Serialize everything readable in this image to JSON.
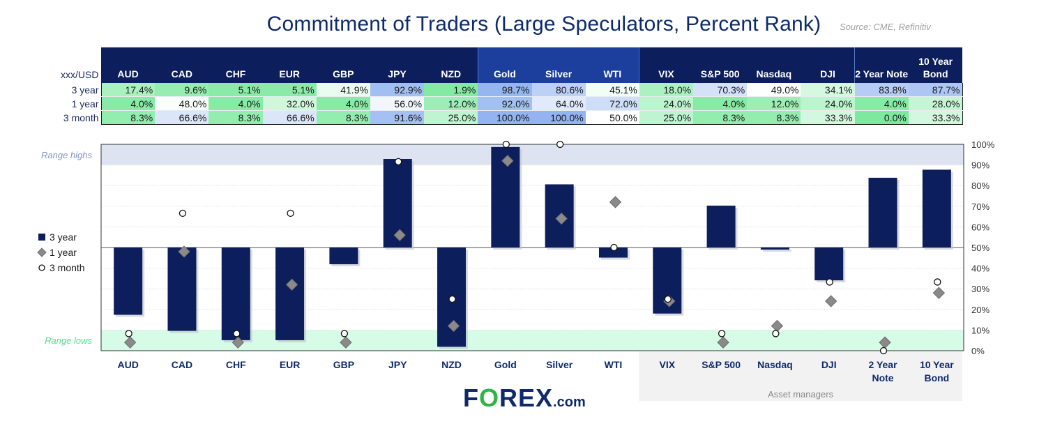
{
  "title": "Commitment of Traders (Large Speculators, Percent Rank)",
  "source": "Source: CME, Refinitiv",
  "table": {
    "corner_label": "xxx/USD",
    "columns": [
      {
        "label": "AUD",
        "group": "fx"
      },
      {
        "label": "CAD",
        "group": "fx"
      },
      {
        "label": "CHF",
        "group": "fx"
      },
      {
        "label": "EUR",
        "group": "fx"
      },
      {
        "label": "GBP",
        "group": "fx"
      },
      {
        "label": "JPY",
        "group": "fx"
      },
      {
        "label": "NZD",
        "group": "fx"
      },
      {
        "label": "Gold",
        "group": "commodities"
      },
      {
        "label": "Silver",
        "group": "commodities"
      },
      {
        "label": "WTI",
        "group": "commodities"
      },
      {
        "label": "VIX",
        "group": "indices"
      },
      {
        "label": "S&P 500",
        "group": "indices"
      },
      {
        "label": "Nasdaq",
        "group": "indices"
      },
      {
        "label": "DJI",
        "group": "indices"
      },
      {
        "label": "2 Year Note",
        "group": "bonds"
      },
      {
        "label": "10 Year Bond",
        "group": "bonds"
      }
    ],
    "rows": [
      {
        "label": "3 year",
        "values": [
          "17.4%",
          "9.6%",
          "5.1%",
          "5.1%",
          "41.9%",
          "92.9%",
          "1.9%",
          "98.7%",
          "80.6%",
          "45.1%",
          "18.0%",
          "70.3%",
          "49.0%",
          "34.1%",
          "83.8%",
          "87.7%"
        ]
      },
      {
        "label": "1 year",
        "values": [
          "4.0%",
          "48.0%",
          "4.0%",
          "32.0%",
          "4.0%",
          "56.0%",
          "12.0%",
          "92.0%",
          "64.0%",
          "72.0%",
          "24.0%",
          "4.0%",
          "12.0%",
          "24.0%",
          "4.0%",
          "28.0%"
        ]
      },
      {
        "label": "3 month",
        "values": [
          "8.3%",
          "66.6%",
          "8.3%",
          "66.6%",
          "8.3%",
          "91.6%",
          "25.0%",
          "100.0%",
          "100.0%",
          "50.0%",
          "25.0%",
          "8.3%",
          "8.3%",
          "33.3%",
          "0.0%",
          "33.3%"
        ]
      }
    ]
  },
  "chart_data": {
    "type": "bar",
    "categories": [
      "AUD",
      "CAD",
      "CHF",
      "EUR",
      "GBP",
      "JPY",
      "NZD",
      "Gold",
      "Silver",
      "WTI",
      "VIX",
      "S&P 500",
      "Nasdaq",
      "DJI",
      "2 Year Note",
      "10 Year Bond"
    ],
    "series": [
      {
        "name": "3 year",
        "kind": "bar",
        "values": [
          17.4,
          9.6,
          5.1,
          5.1,
          41.9,
          92.9,
          1.9,
          98.7,
          80.6,
          45.1,
          18.0,
          70.3,
          49.0,
          34.1,
          83.8,
          87.7
        ]
      },
      {
        "name": "1 year",
        "kind": "diamond",
        "values": [
          4.0,
          48.0,
          4.0,
          32.0,
          4.0,
          56.0,
          12.0,
          92.0,
          64.0,
          72.0,
          24.0,
          4.0,
          12.0,
          24.0,
          4.0,
          28.0
        ]
      },
      {
        "name": "3 month",
        "kind": "circle",
        "values": [
          8.3,
          66.6,
          8.3,
          66.6,
          8.3,
          91.6,
          25.0,
          100.0,
          100.0,
          50.0,
          25.0,
          8.3,
          8.3,
          33.3,
          0.0,
          33.3
        ]
      }
    ],
    "bar_baseline": 50,
    "ylim": [
      0,
      100
    ],
    "yticks": [
      "0%",
      "10%",
      "20%",
      "30%",
      "40%",
      "50%",
      "60%",
      "70%",
      "80%",
      "90%",
      "100%"
    ],
    "y_axis_side": "right",
    "bands": [
      {
        "label": "Range highs",
        "from": 90,
        "to": 100,
        "color": "#dde3f0",
        "label_color": "#8496c0"
      },
      {
        "label": "Range lows",
        "from": 0,
        "to": 10,
        "color": "#d6fbe6",
        "label_color": "#54e08f"
      }
    ],
    "annotation": {
      "label": "Asset managers",
      "from_category": "VIX",
      "to_category": "10 Year Bond"
    },
    "legend_position": "left",
    "colors": {
      "bar": "#0c1e5c",
      "diamond": "#8a8a8a",
      "circle": "#ffffff"
    }
  },
  "logo": {
    "prefix": "F",
    "o": "O",
    "suffix": "REX",
    "tld": ".com"
  }
}
